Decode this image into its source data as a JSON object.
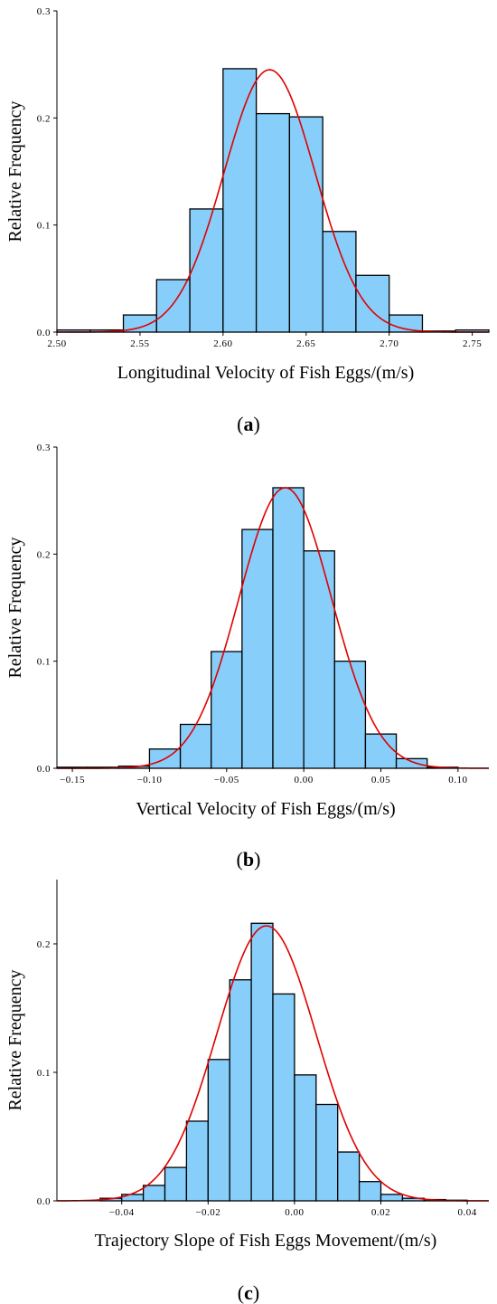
{
  "chart_data": [
    {
      "type": "bar",
      "panel_label": "a",
      "xlabel": "Longitudinal Velocity of Fish Eggs/(m/s)",
      "ylabel": "Relative Frequency",
      "xlim": [
        2.5,
        2.76
      ],
      "ylim": [
        0,
        0.3
      ],
      "xticks": [
        2.5,
        2.55,
        2.6,
        2.65,
        2.7,
        2.75
      ],
      "xtick_labels": [
        "2.50",
        "2.55",
        "2.60",
        "2.65",
        "2.70",
        "2.75"
      ],
      "yticks": [
        0,
        0.1,
        0.2,
        0.3
      ],
      "ytick_labels": [
        "0.0",
        "0.1",
        "0.2",
        "0.3"
      ],
      "bins": [
        {
          "start": 2.5,
          "end": 2.52,
          "value": 0.002
        },
        {
          "start": 2.52,
          "end": 2.54,
          "value": 0.002
        },
        {
          "start": 2.54,
          "end": 2.56,
          "value": 0.016
        },
        {
          "start": 2.56,
          "end": 2.58,
          "value": 0.049
        },
        {
          "start": 2.58,
          "end": 2.6,
          "value": 0.115
        },
        {
          "start": 2.6,
          "end": 2.62,
          "value": 0.246
        },
        {
          "start": 2.62,
          "end": 2.64,
          "value": 0.204
        },
        {
          "start": 2.64,
          "end": 2.66,
          "value": 0.201
        },
        {
          "start": 2.66,
          "end": 2.68,
          "value": 0.094
        },
        {
          "start": 2.68,
          "end": 2.7,
          "value": 0.053
        },
        {
          "start": 2.7,
          "end": 2.72,
          "value": 0.016
        },
        {
          "start": 2.72,
          "end": 2.74,
          "value": 0.001
        },
        {
          "start": 2.74,
          "end": 2.76,
          "value": 0.002
        }
      ],
      "fit": {
        "type": "normal",
        "mean": 2.628,
        "peak": 0.245,
        "sigma": 0.0275
      },
      "colors": {
        "bar": "#87cefa",
        "curve": "#e00000"
      }
    },
    {
      "type": "bar",
      "panel_label": "b",
      "xlabel": "Vertical Velocity of Fish Eggs/(m/s)",
      "ylabel": "Relative Frequency",
      "xlim": [
        -0.16,
        0.12
      ],
      "ylim": [
        0,
        0.3
      ],
      "xticks": [
        -0.15,
        -0.1,
        -0.05,
        0.0,
        0.05,
        0.1
      ],
      "xtick_labels": [
        "−0.15",
        "−0.10",
        "−0.05",
        "0.00",
        "0.05",
        "0.10"
      ],
      "yticks": [
        0,
        0.1,
        0.2,
        0.3
      ],
      "ytick_labels": [
        "0.0",
        "0.1",
        "0.2",
        "0.3"
      ],
      "bins": [
        {
          "start": -0.16,
          "end": -0.14,
          "value": 0.001
        },
        {
          "start": -0.14,
          "end": -0.12,
          "value": 0.001
        },
        {
          "start": -0.12,
          "end": -0.1,
          "value": 0.002
        },
        {
          "start": -0.1,
          "end": -0.08,
          "value": 0.018
        },
        {
          "start": -0.08,
          "end": -0.06,
          "value": 0.041
        },
        {
          "start": -0.06,
          "end": -0.04,
          "value": 0.109
        },
        {
          "start": -0.04,
          "end": -0.02,
          "value": 0.223
        },
        {
          "start": -0.02,
          "end": 0.0,
          "value": 0.262
        },
        {
          "start": 0.0,
          "end": 0.02,
          "value": 0.203
        },
        {
          "start": 0.02,
          "end": 0.04,
          "value": 0.1
        },
        {
          "start": 0.04,
          "end": 0.06,
          "value": 0.032
        },
        {
          "start": 0.06,
          "end": 0.08,
          "value": 0.009
        },
        {
          "start": 0.08,
          "end": 0.1,
          "value": 0.001
        }
      ],
      "fit": {
        "type": "normal",
        "mean": -0.012,
        "peak": 0.262,
        "sigma": 0.03
      },
      "colors": {
        "bar": "#87cefa",
        "curve": "#e00000"
      }
    },
    {
      "type": "bar",
      "panel_label": "c",
      "xlabel": "Trajectory Slope of Fish Eggs Movement/(m/s)",
      "ylabel": "Relative Frequency",
      "xlim": [
        -0.055,
        0.045
      ],
      "ylim": [
        0,
        0.25
      ],
      "xticks": [
        -0.04,
        -0.02,
        0.0,
        0.02,
        0.04
      ],
      "xtick_labels": [
        "−0.04",
        "−0.02",
        "0.00",
        "0.02",
        "0.04"
      ],
      "yticks": [
        0,
        0.1,
        0.2
      ],
      "ytick_labels": [
        "0.0",
        "0.1",
        "0.2"
      ],
      "bins": [
        {
          "start": -0.045,
          "end": -0.04,
          "value": 0.002
        },
        {
          "start": -0.04,
          "end": -0.035,
          "value": 0.005
        },
        {
          "start": -0.035,
          "end": -0.03,
          "value": 0.012
        },
        {
          "start": -0.03,
          "end": -0.025,
          "value": 0.026
        },
        {
          "start": -0.025,
          "end": -0.02,
          "value": 0.062
        },
        {
          "start": -0.02,
          "end": -0.015,
          "value": 0.11
        },
        {
          "start": -0.015,
          "end": -0.01,
          "value": 0.172
        },
        {
          "start": -0.01,
          "end": -0.005,
          "value": 0.216
        },
        {
          "start": -0.005,
          "end": 0.0,
          "value": 0.161
        },
        {
          "start": 0.0,
          "end": 0.005,
          "value": 0.098
        },
        {
          "start": 0.005,
          "end": 0.01,
          "value": 0.075
        },
        {
          "start": 0.01,
          "end": 0.015,
          "value": 0.038
        },
        {
          "start": 0.015,
          "end": 0.02,
          "value": 0.015
        },
        {
          "start": 0.02,
          "end": 0.025,
          "value": 0.005
        },
        {
          "start": 0.025,
          "end": 0.03,
          "value": 0.002
        },
        {
          "start": 0.03,
          "end": 0.035,
          "value": 0.001
        },
        {
          "start": 0.035,
          "end": 0.04,
          "value": 0.0005
        }
      ],
      "fit": {
        "type": "normal",
        "mean": -0.0065,
        "peak": 0.214,
        "sigma": 0.0115
      },
      "colors": {
        "bar": "#87cefa",
        "curve": "#e00000"
      }
    }
  ]
}
